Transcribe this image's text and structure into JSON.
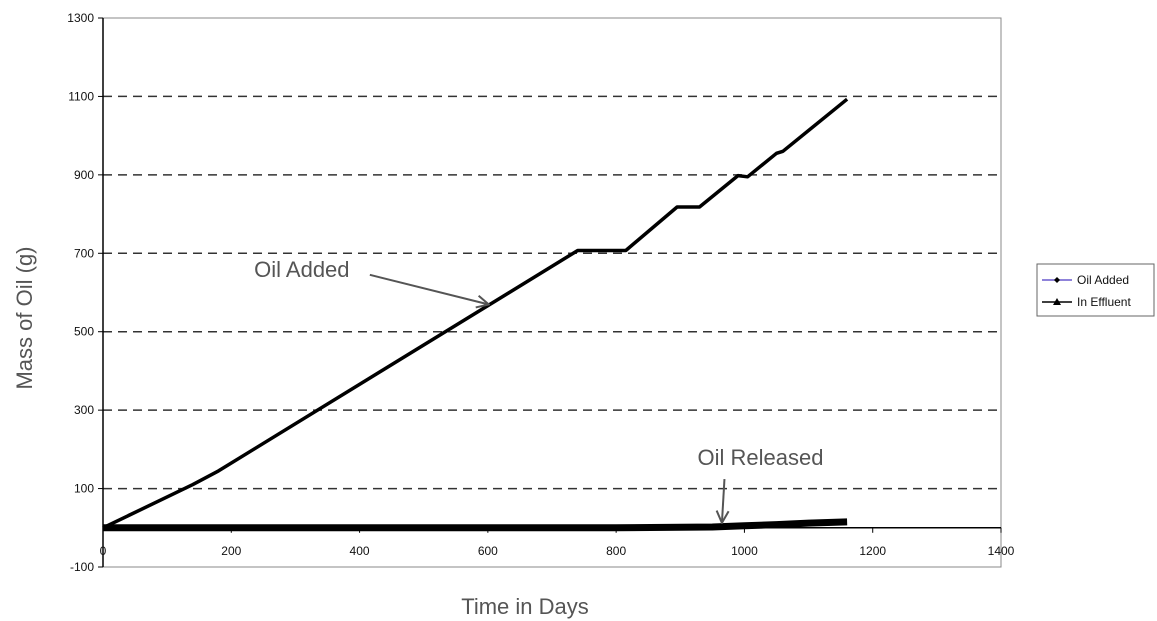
{
  "chart_data": {
    "type": "line",
    "xlabel": "Time in Days",
    "ylabel": "Mass of Oil (g)",
    "xlim": [
      0,
      1400
    ],
    "ylim": [
      -100,
      1300
    ],
    "xticks": [
      0,
      200,
      400,
      600,
      800,
      1000,
      1200,
      1400
    ],
    "yticks": [
      -100,
      100,
      300,
      500,
      700,
      900,
      1100,
      1300
    ],
    "grid": "horizontal-dashed",
    "legend_position": "right",
    "series": [
      {
        "name": "Oil Added",
        "color": "#000000",
        "legend_color": "#6a5acd",
        "marker": "diamond",
        "x": [
          0,
          140,
          180,
          740,
          815,
          895,
          930,
          990,
          1005,
          1050,
          1060,
          1160
        ],
        "y": [
          0,
          110,
          145,
          707,
          707,
          818,
          818,
          898,
          895,
          955,
          960,
          1093
        ]
      },
      {
        "name": "In Effluent",
        "color": "#000000",
        "legend_color": "#000000",
        "marker": "triangle",
        "x": [
          0,
          200,
          400,
          600,
          800,
          950,
          1000,
          1050,
          1100,
          1160
        ],
        "y": [
          0,
          0,
          0,
          0,
          0,
          2,
          5,
          8,
          12,
          15
        ]
      }
    ],
    "annotations": [
      {
        "text": "Oil Added",
        "label_x": 310,
        "label_y": 640,
        "arrow_to": [
          600,
          570
        ]
      },
      {
        "text": "Oil Released",
        "label_x": 1025,
        "label_y": 160,
        "arrow_to": [
          965,
          15
        ]
      }
    ]
  }
}
